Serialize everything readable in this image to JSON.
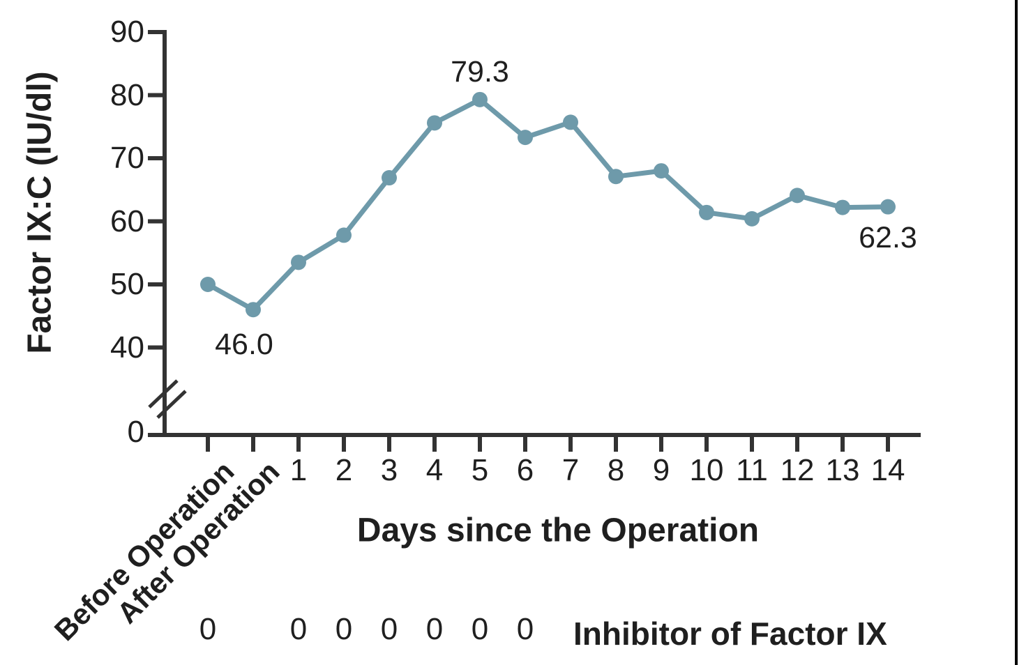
{
  "figure": {
    "background": "#ffffff",
    "colors": {
      "line": "#6E9AAA",
      "axis": "#333333",
      "text": "#1f1f1f"
    }
  },
  "chart_data": {
    "type": "line",
    "title": "",
    "ylabel": "Factor IX:C (IU/dl)",
    "xlabel": "Days since the Operation",
    "categories": [
      "Before Operation",
      "After Operation",
      "1",
      "2",
      "3",
      "4",
      "5",
      "6",
      "7",
      "8",
      "9",
      "10",
      "11",
      "12",
      "13",
      "14"
    ],
    "values": [
      50.0,
      46.0,
      53.5,
      57.8,
      66.9,
      75.6,
      79.3,
      73.3,
      75.7,
      67.1,
      68.0,
      61.4,
      60.4,
      64.1,
      62.2,
      62.3
    ],
    "y_ticks": [
      90,
      80,
      70,
      60,
      50,
      40,
      0
    ],
    "y_axis_break": true,
    "ylim": [
      0,
      90
    ],
    "grid": false,
    "legend": "none",
    "annotations": [
      {
        "index": 1,
        "text": "46.0",
        "placement": "below-left"
      },
      {
        "index": 6,
        "text": "79.3",
        "placement": "above"
      },
      {
        "index": 15,
        "text": "62.3",
        "placement": "below-right"
      }
    ],
    "inhibitor_row": {
      "label": "Inhibitor of Factor IX",
      "value": "0",
      "zero_category_indices": [
        0,
        2,
        3,
        4,
        5,
        6,
        7
      ]
    }
  }
}
